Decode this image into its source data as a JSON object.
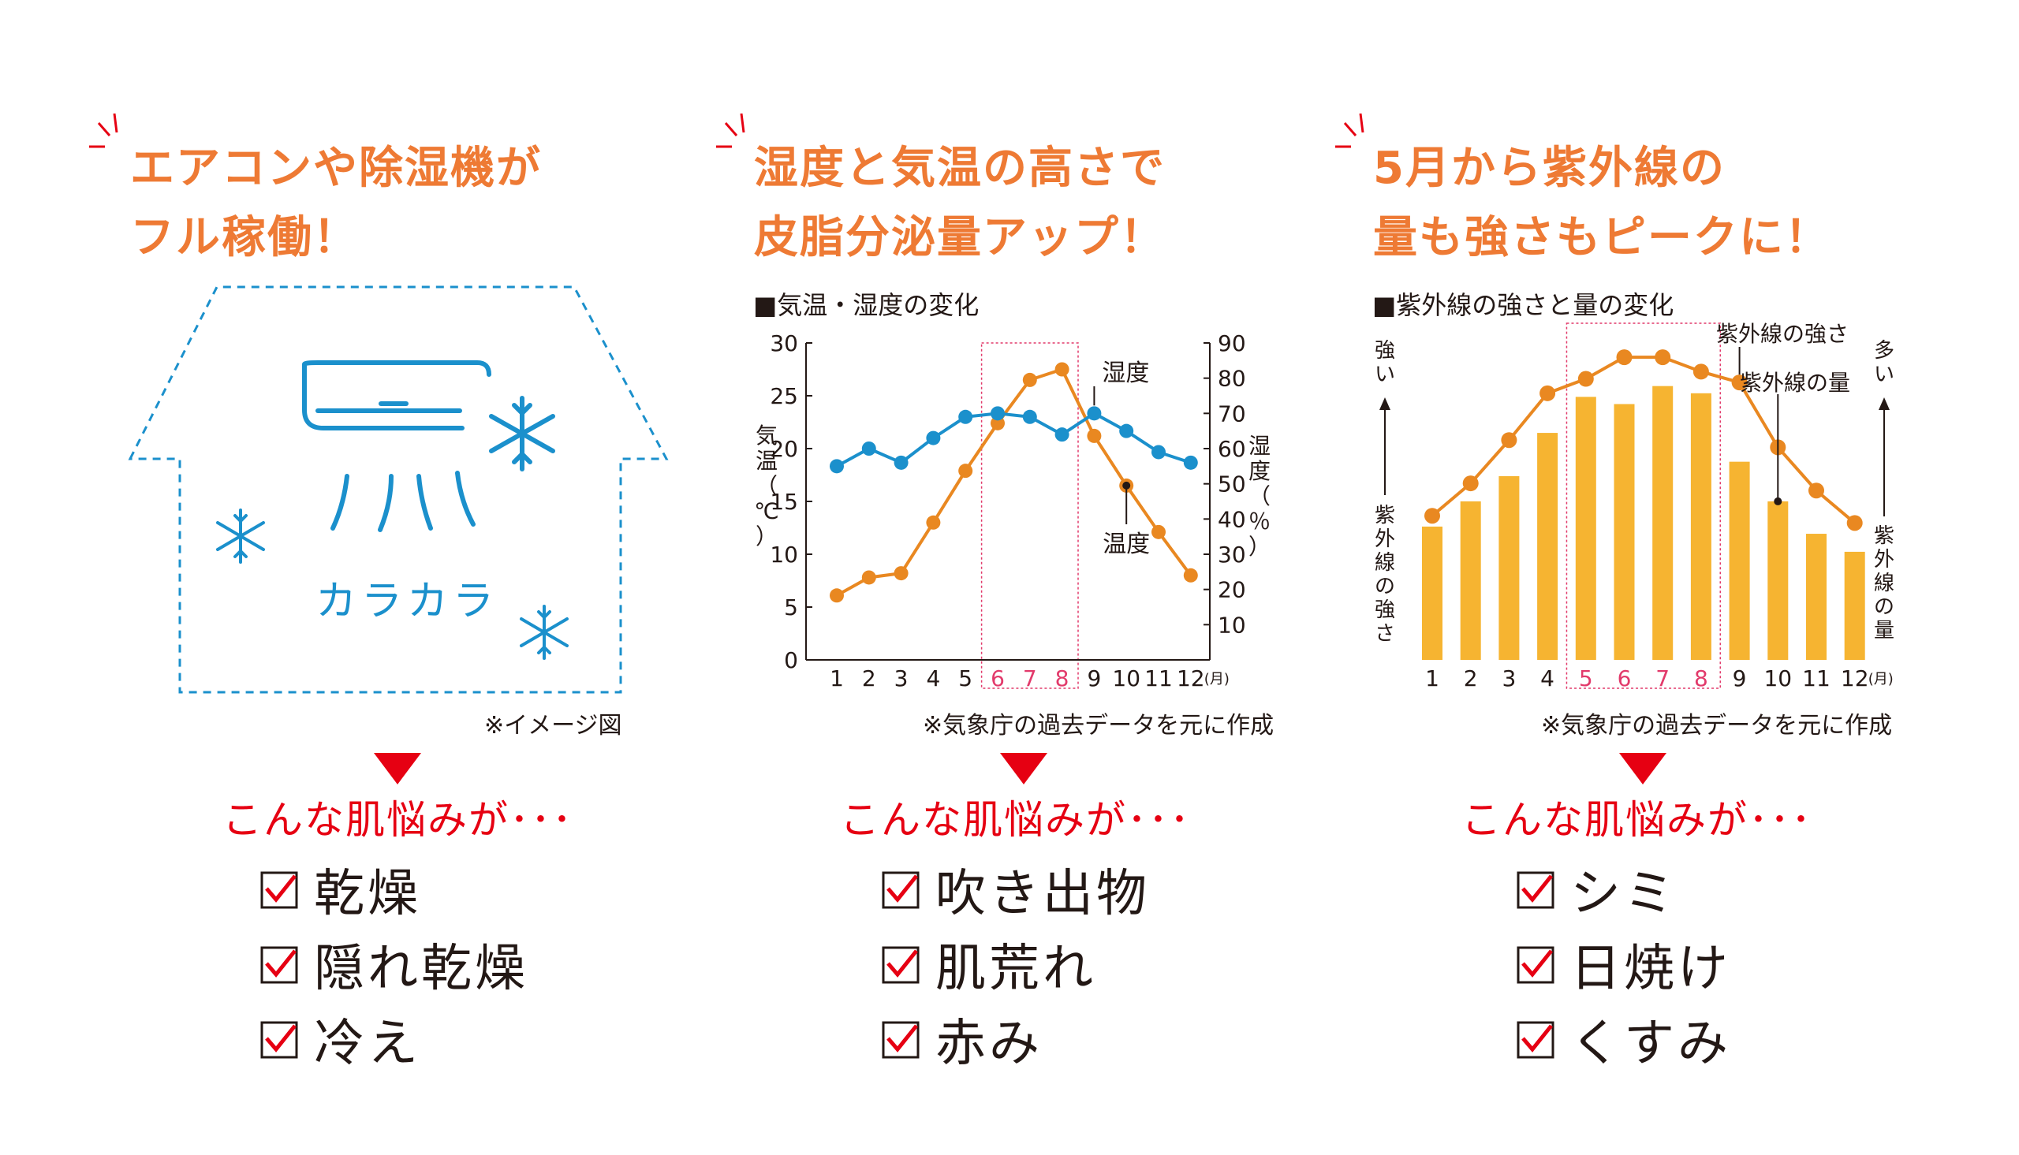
{
  "colors": {
    "accent_orange": "#ee7a34",
    "red": "#e60012",
    "blue": "#1b90cc",
    "line_orange": "#e98821",
    "bar_yellow": "#f6b431",
    "highlight": "#e23a6b",
    "text": "#231815"
  },
  "icons": [
    "burst-icon",
    "house-icon",
    "air-conditioner-icon",
    "snowflake-icon",
    "down-triangle-icon",
    "checkbox-checked-icon"
  ],
  "panels": [
    {
      "headline": [
        "エアコンや除湿機が",
        "フル稼働！"
      ],
      "illustration": {
        "caption": "カラカラ",
        "note": "※イメージ図"
      },
      "worry": "こんな肌悩みが･･･",
      "checklist": [
        "乾燥",
        "隠れ乾燥",
        "冷え"
      ]
    },
    {
      "headline": [
        "湿度と気温の高さで",
        "皮脂分泌量アップ！"
      ],
      "chart_title": "■気温・湿度の変化",
      "source": "※気象庁の過去データを元に作成",
      "worry": "こんな肌悩みが･･･",
      "checklist": [
        "吹き出物",
        "肌荒れ",
        "赤み"
      ]
    },
    {
      "headline": [
        "5月から紫外線の",
        "量も強さもピークに！"
      ],
      "chart_title": "■紫外線の強さと量の変化",
      "source": "※気象庁の過去データを元に作成",
      "worry": "こんな肌悩みが･･･",
      "checklist": [
        "シミ",
        "日焼け",
        "くすみ"
      ]
    }
  ],
  "chart_data": [
    {
      "type": "line",
      "x": [
        "1",
        "2",
        "3",
        "4",
        "5",
        "6",
        "7",
        "8",
        "9",
        "10",
        "11",
        "12"
      ],
      "x_unit": "(月)",
      "highlight_x": [
        "6",
        "7",
        "8"
      ],
      "series": [
        {
          "name": "気温",
          "axis": "left",
          "color": "#e98821",
          "values": [
            6.1,
            7.8,
            8.2,
            13.0,
            17.9,
            22.4,
            26.5,
            27.5,
            21.2,
            16.5,
            12.1,
            8.0
          ]
        },
        {
          "name": "湿度",
          "axis": "right",
          "color": "#1b90cc",
          "values": [
            55,
            60,
            56,
            63,
            69,
            70,
            69,
            64,
            70,
            65,
            59,
            56
          ]
        }
      ],
      "series_labels": {
        "humidity": "湿度",
        "temperature": "温度"
      },
      "ylabel_left": [
        "気",
        "温",
        "（",
        "℃",
        "）"
      ],
      "ylabel_right": [
        "湿",
        "度",
        "（",
        "％",
        "）"
      ],
      "y_left": {
        "range": [
          0,
          30
        ],
        "ticks": [
          "0",
          "5",
          "10",
          "15",
          "20",
          "25",
          "30"
        ]
      },
      "y_right": {
        "range": [
          0,
          90
        ],
        "ticks": [
          "10",
          "20",
          "30",
          "40",
          "50",
          "60",
          "70",
          "80",
          "90"
        ]
      },
      "grid": false,
      "legend": "inline-callouts"
    },
    {
      "type": "bar",
      "x": [
        "1",
        "2",
        "3",
        "4",
        "5",
        "6",
        "7",
        "8",
        "9",
        "10",
        "11",
        "12"
      ],
      "x_unit": "(月)",
      "highlight_x": [
        "5",
        "6",
        "7",
        "8"
      ],
      "series": [
        {
          "name": "紫外線の量",
          "kind": "bar",
          "color": "#f6b431",
          "values": [
            0.37,
            0.44,
            0.51,
            0.63,
            0.73,
            0.71,
            0.76,
            0.74,
            0.55,
            0.44,
            0.35,
            0.3
          ]
        },
        {
          "name": "紫外線の強さ",
          "kind": "line",
          "color": "#e98821",
          "values": [
            0.4,
            0.49,
            0.61,
            0.74,
            0.78,
            0.84,
            0.84,
            0.8,
            0.77,
            0.59,
            0.47,
            0.38
          ]
        }
      ],
      "left_axis": {
        "top": [
          "強",
          "い"
        ],
        "bottom": [
          "紫",
          "外",
          "線",
          "の",
          "強",
          "さ"
        ]
      },
      "right_axis": {
        "top": [
          "多",
          "い"
        ],
        "bottom": [
          "紫",
          "外",
          "線",
          "の",
          "量"
        ]
      },
      "y_range": [
        0,
        1
      ],
      "grid": false,
      "legend": "inline-callouts"
    }
  ]
}
